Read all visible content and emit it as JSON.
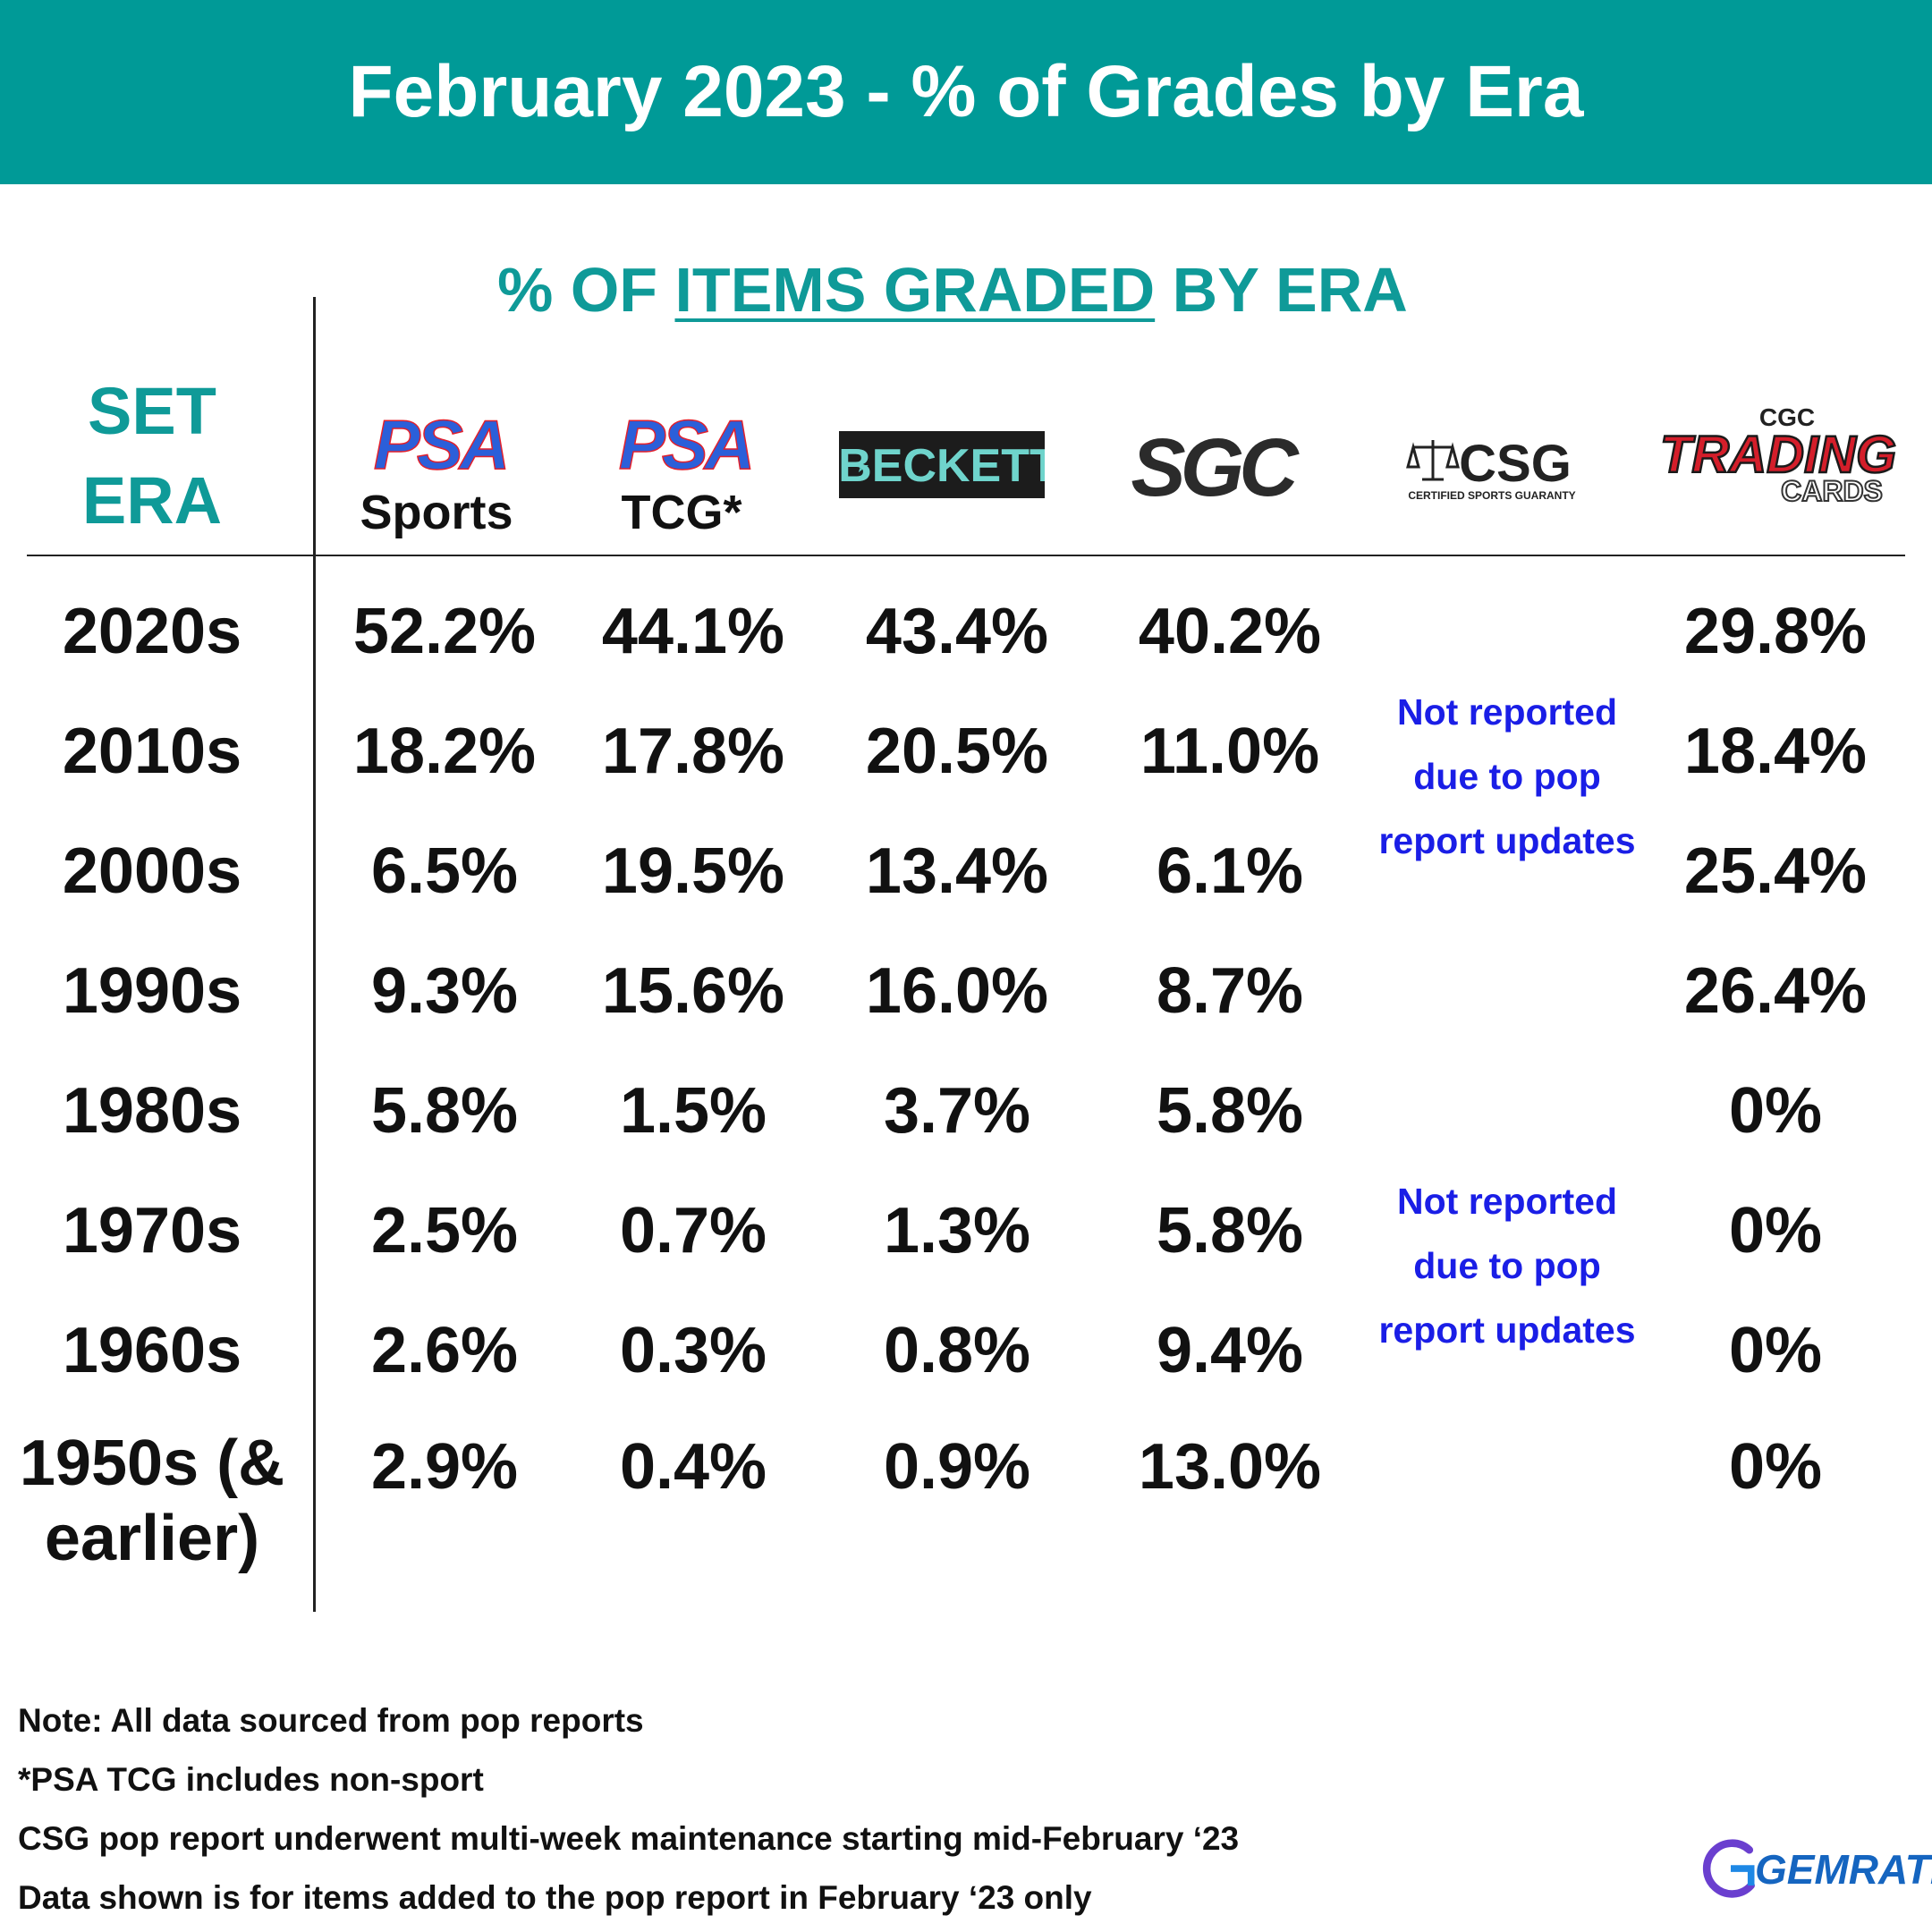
{
  "title": "February 2023 - % of Grades by Era",
  "chart_data": {
    "type": "table",
    "title": "% OF ITEMS GRADED BY ERA",
    "title_parts": [
      "% OF ",
      "ITEMS GRADED",
      " BY ERA"
    ],
    "row_header": [
      "SET",
      "ERA"
    ],
    "columns": [
      {
        "logo": "PSA",
        "label": "Sports"
      },
      {
        "logo": "PSA",
        "label": "TCG*"
      },
      {
        "logo": "BECKETT",
        "label": ""
      },
      {
        "logo": "SGC",
        "label": ""
      },
      {
        "logo": "CSG",
        "logo_sub": "CERTIFIED SPORTS GUARANTY",
        "label": ""
      },
      {
        "logo": "TRADING",
        "logo_top": "CGC",
        "logo_sub": "CARDS",
        "label": ""
      }
    ],
    "rows": [
      {
        "era": "2020s",
        "values": [
          "52.2%",
          "44.1%",
          "43.4%",
          "40.2%",
          "",
          "29.8%"
        ]
      },
      {
        "era": "2010s",
        "values": [
          "18.2%",
          "17.8%",
          "20.5%",
          "11.0%",
          "",
          "18.4%"
        ]
      },
      {
        "era": "2000s",
        "values": [
          "6.5%",
          "19.5%",
          "13.4%",
          "6.1%",
          "",
          "25.4%"
        ]
      },
      {
        "era": "1990s",
        "values": [
          "9.3%",
          "15.6%",
          "16.0%",
          "8.7%",
          "",
          "26.4%"
        ]
      },
      {
        "era": "1980s",
        "values": [
          "5.8%",
          "1.5%",
          "3.7%",
          "5.8%",
          "",
          "0%"
        ]
      },
      {
        "era": "1970s",
        "values": [
          "2.5%",
          "0.7%",
          "1.3%",
          "5.8%",
          "",
          "0%"
        ]
      },
      {
        "era": "1960s",
        "values": [
          "2.6%",
          "0.3%",
          "0.8%",
          "9.4%",
          "",
          "0%"
        ]
      },
      {
        "era": "1950s (& earlier)",
        "era_lines": [
          "1950s (&",
          "earlier)"
        ],
        "values": [
          "2.9%",
          "0.4%",
          "0.9%",
          "13.0%",
          "",
          "0%"
        ]
      }
    ],
    "csg_note_lines": [
      "Not reported",
      "due to pop",
      "report updates"
    ]
  },
  "notes": [
    "Note: All data sourced from pop reports",
    "*PSA TCG includes non-sport",
    "CSG pop report underwent multi-week maintenance starting mid-February ‘23",
    "Data shown is for items added to the pop report in February ‘23 only"
  ],
  "brand": "GEMRATE",
  "colors": {
    "banner": "#009a97",
    "accent_text": "#0f9a98",
    "note_blue": "#1a1ee6",
    "psa_blue": "#2b5fd9",
    "psa_red": "#e2202c",
    "cgc_red": "#d41e2a"
  }
}
